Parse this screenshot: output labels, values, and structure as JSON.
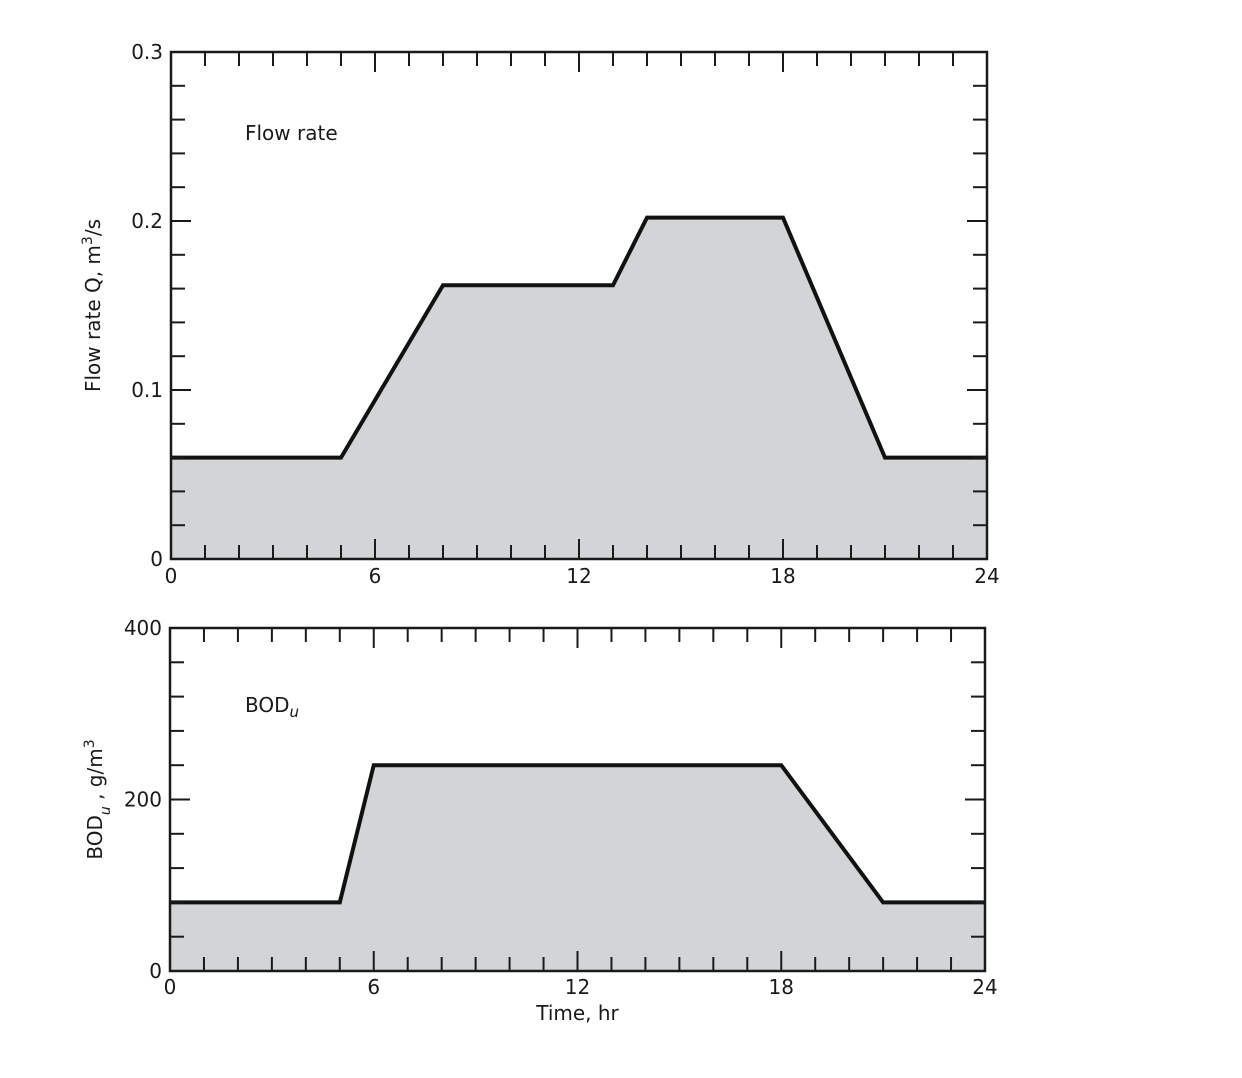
{
  "chart_data": [
    {
      "type": "area",
      "annotation": "Flow rate",
      "ylabel": "Flow rate Q, m3/s",
      "ylabel_parts": {
        "main": "Flow rate Q,  m",
        "sup": "3",
        "tail": "/s"
      },
      "xlabel": "",
      "x": [
        0,
        5,
        8,
        13,
        14,
        18,
        21,
        24
      ],
      "y": [
        0.06,
        0.06,
        0.162,
        0.162,
        0.202,
        0.202,
        0.06,
        0.06
      ],
      "xlim": [
        0,
        24
      ],
      "ylim": [
        0,
        0.3
      ],
      "xticks": [
        "0",
        "6",
        "12",
        "18",
        "24"
      ],
      "yticks": [
        "0",
        "0.1",
        "0.2",
        "0.3"
      ],
      "grid": false
    },
    {
      "type": "area",
      "annotation": "BOD",
      "annotation_sub": "u",
      "ylabel": "BODu , g/m3",
      "ylabel_parts": {
        "main": "BOD",
        "sub": "u",
        "mid": " ,  g/m",
        "sup": "3"
      },
      "xlabel": "Time, hr",
      "x": [
        0,
        5,
        6,
        18,
        21,
        24
      ],
      "y": [
        80,
        80,
        240,
        240,
        80,
        80
      ],
      "xlim": [
        0,
        24
      ],
      "ylim": [
        0,
        400
      ],
      "xticks": [
        "0",
        "6",
        "12",
        "18",
        "24"
      ],
      "yticks": [
        "0",
        "200",
        "400"
      ],
      "grid": false
    }
  ],
  "colors": {
    "fill": "#d3d4d6",
    "line": "#111111",
    "frame": "#1a1a1a"
  }
}
